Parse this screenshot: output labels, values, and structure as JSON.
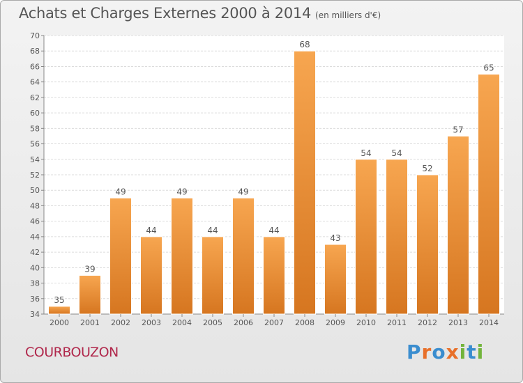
{
  "title": "Achats et Charges Externes 2000 à 2014",
  "unit": "(en milliers d'€)",
  "commune": "COURBOUZON",
  "logo": {
    "text": "Proxiti",
    "letters": [
      {
        "char": "P",
        "color": "#3a8dcf"
      },
      {
        "char": "r",
        "color": "#e8702a"
      },
      {
        "char": "o",
        "color": "#3a8dcf"
      },
      {
        "char": "x",
        "color": "#e8702a"
      },
      {
        "char": "i",
        "color": "#73b43c"
      },
      {
        "char": "t",
        "color": "#3a8dcf"
      },
      {
        "char": "i",
        "color": "#73b43c"
      }
    ]
  },
  "colors": {
    "bar_top": "#f7a650",
    "bar_bottom": "#d67620",
    "text": "#555555",
    "commune": "#b0274b"
  },
  "chart_data": {
    "type": "bar",
    "categories": [
      "2000",
      "2001",
      "2002",
      "2003",
      "2004",
      "2005",
      "2006",
      "2007",
      "2008",
      "2009",
      "2010",
      "2011",
      "2012",
      "2013",
      "2014"
    ],
    "values": [
      35,
      39,
      49,
      44,
      49,
      44,
      49,
      44,
      68,
      43,
      54,
      54,
      52,
      57,
      65
    ],
    "ylim": [
      34,
      70
    ],
    "yticks": [
      34,
      36,
      38,
      40,
      42,
      44,
      46,
      48,
      50,
      52,
      54,
      56,
      58,
      60,
      62,
      64,
      66,
      68,
      70
    ],
    "grid": true,
    "data_labels": true
  }
}
